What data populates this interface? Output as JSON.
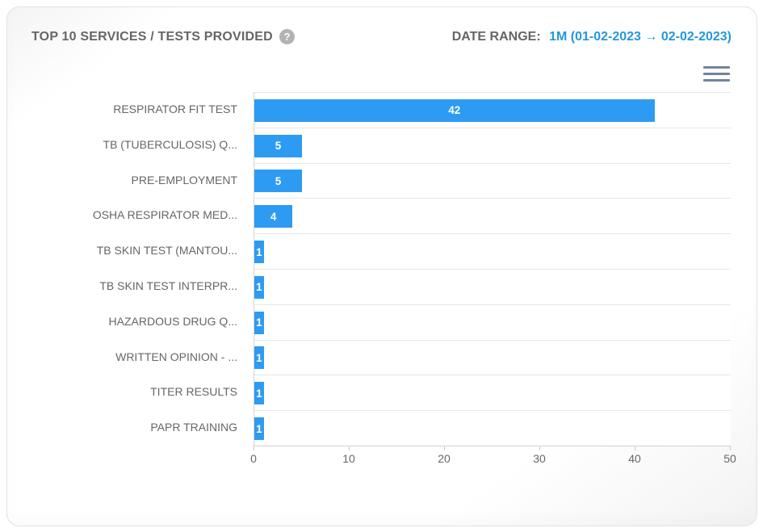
{
  "header": {
    "title": "TOP 10 SERVICES / TESTS PROVIDED",
    "help_glyph": "?",
    "date_range_label": "DATE RANGE:",
    "date_range_value": "1M (01-02-2023 → 02-02-2023)"
  },
  "colors": {
    "bar": "#2e9bf3",
    "accent_text": "#2398dd",
    "title_text": "#666666",
    "axis_text": "#666666",
    "gridline": "#e6e6e6",
    "burger_icon": "#73849a",
    "help_icon_bg": "#b3b3b3"
  },
  "chart_data": {
    "type": "bar",
    "orientation": "horizontal",
    "title": "TOP 10 SERVICES / TESTS PROVIDED",
    "categories": [
      "RESPIRATOR FIT TEST",
      "TB (TUBERCULOSIS) Q...",
      "PRE-EMPLOYMENT",
      "OSHA RESPIRATOR MED...",
      "TB SKIN TEST (MANTOU...",
      "TB SKIN TEST INTERPR...",
      "HAZARDOUS DRUG Q...",
      "WRITTEN OPINION - ...",
      "TITER RESULTS",
      "PAPR TRAINING"
    ],
    "values": [
      42,
      5,
      5,
      4,
      1,
      1,
      1,
      1,
      1,
      1
    ],
    "xlabel": "",
    "ylabel": "",
    "xlim": [
      0,
      50
    ],
    "x_ticks": [
      0,
      10,
      20,
      30,
      40,
      50
    ],
    "grid": "category-separator-lines-only",
    "legend": "none",
    "data_labels": "inside-white-bold"
  }
}
